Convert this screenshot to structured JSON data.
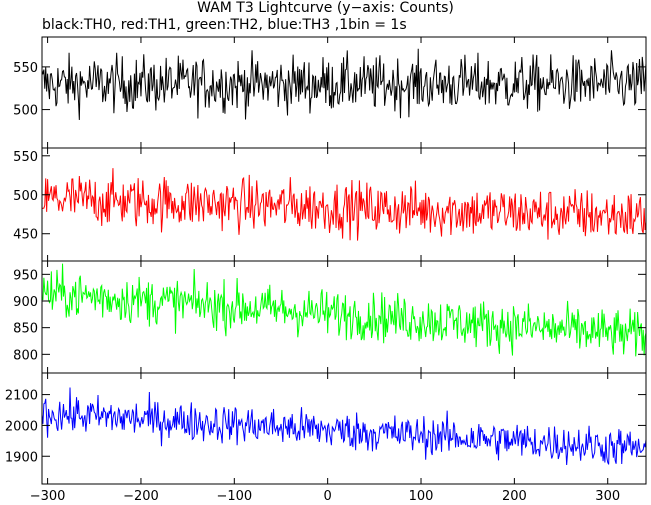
{
  "title": "WAM T3 Lightcurve (y−axis: Counts)",
  "subtitle": "black:TH0, red:TH1, green:TH2, blue:TH3 ,1bin = 1s",
  "chart_data": {
    "type": "line",
    "xlim": [
      -306,
      341
    ],
    "x_ticks": [
      -300,
      -200,
      -100,
      0,
      100,
      200,
      300
    ],
    "x_tick_labels": [
      "−300",
      "−200",
      "−100",
      "0",
      "100",
      "200",
      "300"
    ],
    "x_step": 1,
    "panels": [
      {
        "name": "TH0",
        "color": "#000000",
        "ylim": [
          455,
          585
        ],
        "y_ticks": [
          500,
          550
        ],
        "y_tick_labels": [
          "500",
          "550"
        ],
        "trend": [
          [
            -306,
            530
          ],
          [
            341,
            530
          ]
        ],
        "noise": 23
      },
      {
        "name": "TH1",
        "color": "#ff0000",
        "ylim": [
          415,
          560
        ],
        "y_ticks": [
          450,
          500,
          550
        ],
        "y_tick_labels": [
          "450",
          "500",
          "550"
        ],
        "trend": [
          [
            -306,
            495
          ],
          [
            341,
            472
          ]
        ],
        "noise": 24
      },
      {
        "name": "TH2",
        "color": "#00ff00",
        "ylim": [
          765,
          975
        ],
        "y_ticks": [
          800,
          850,
          900,
          950
        ],
        "y_tick_labels": [
          "800",
          "850",
          "900",
          "950"
        ],
        "trend": [
          [
            -306,
            915
          ],
          [
            341,
            835
          ]
        ],
        "noise": 32
      },
      {
        "name": "TH3",
        "color": "#0000ff",
        "ylim": [
          1810,
          2170
        ],
        "y_ticks": [
          1900,
          2000,
          2100
        ],
        "y_tick_labels": [
          "1900",
          "2000",
          "2100"
        ],
        "trend": [
          [
            -306,
            2040
          ],
          [
            341,
            1925
          ]
        ],
        "noise": 45
      }
    ]
  }
}
